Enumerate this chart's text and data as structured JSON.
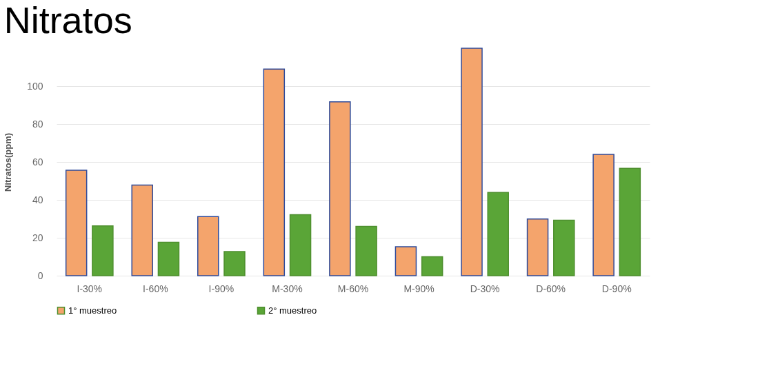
{
  "chart_data": {
    "type": "bar",
    "title": "Nitratos",
    "ylabel": "Nitratos(ppm)",
    "categories": [
      "I-30%",
      "I-60%",
      "I-90%",
      "M-30%",
      "M-60%",
      "M-90%",
      "D-30%",
      "D-60%",
      "D-90%"
    ],
    "series": [
      {
        "name": "1° muestreo",
        "color": "#f4a46c",
        "values": [
          55.6,
          47.8,
          31.2,
          109,
          91.7,
          15.3,
          120,
          29.9,
          64
        ]
      },
      {
        "name": "2° muestreo",
        "color": "#5aa537",
        "values": [
          26.3,
          17.6,
          12.7,
          32.2,
          26,
          10,
          43.9,
          29.3,
          56.6
        ]
      }
    ],
    "ylim": [
      0,
      120
    ],
    "yticks": [
      0,
      20,
      40,
      60,
      80,
      100
    ],
    "grid": "y",
    "legend": "bottom"
  }
}
